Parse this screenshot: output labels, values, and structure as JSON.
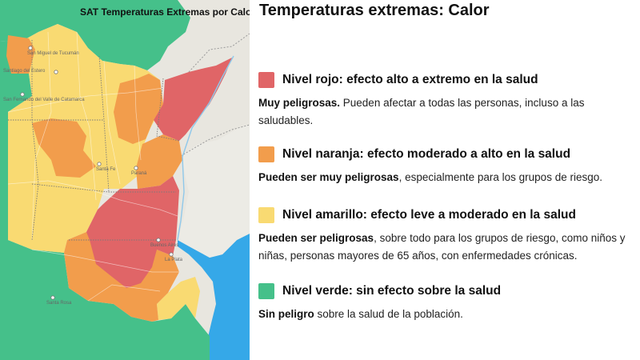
{
  "map": {
    "title": "SAT Temperaturas Extremas por Calor",
    "place_labels": [
      "San Miguel de Tucumán",
      "Santiago del Estero",
      "San Fernando del Valle de Catamarca",
      "Santa Fe",
      "Paraná",
      "Buenos Aires",
      "La Plata",
      "Santa Rosa"
    ]
  },
  "legend": {
    "title": "Temperaturas extremas: Calor",
    "levels": [
      {
        "color": "#e06567",
        "name": "Nivel rojo: efecto alto a extremo en la salud",
        "desc_bold": "Muy peligrosas.",
        "desc_rest": " Pueden afectar a todas las personas, incluso a las saludables."
      },
      {
        "color": "#f29d4c",
        "name": "Nivel naranja: efecto moderado a alto en la salud",
        "desc_bold": "Pueden ser muy peligrosas",
        "desc_rest": ", especialmente para los grupos de riesgo."
      },
      {
        "color": "#f9da72",
        "name": "Nivel amarillo: efecto leve a moderado en la salud",
        "desc_bold": "Pueden ser peligrosas",
        "desc_rest": ", sobre todo para los grupos de riesgo, como niños y niñas, personas mayores de 65 años, con enfermedades crónicas."
      },
      {
        "color": "#45c08a",
        "name": "Nivel verde: sin efecto sobre la salud",
        "desc_bold": "Sin peligro",
        "desc_rest": " sobre la salud de la población."
      }
    ]
  }
}
